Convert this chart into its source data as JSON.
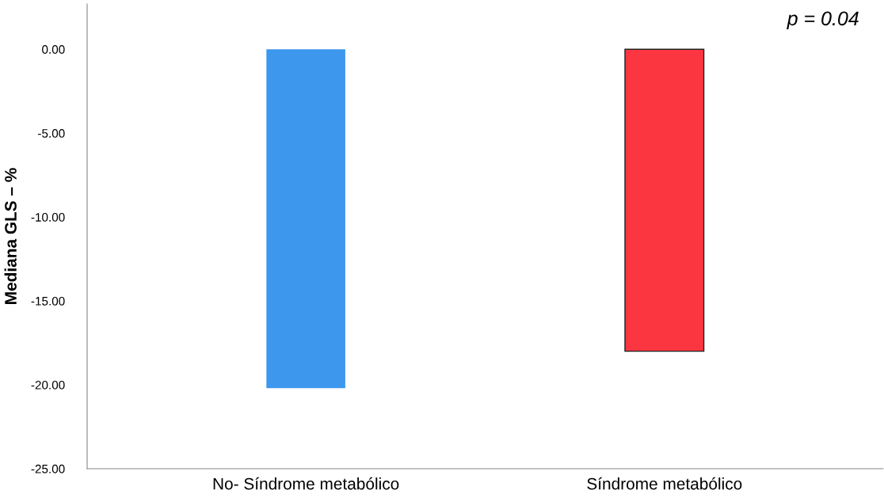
{
  "chart_data": {
    "type": "bar",
    "ylabel": "Mediana GLS – %",
    "categories": [
      "No- Síndrome metabólico",
      "Síndrome metabólico"
    ],
    "values": [
      -20.2,
      -18.0
    ],
    "colors": [
      "#3c97ed",
      "#fc3641"
    ],
    "ylim": [
      -25,
      2.7
    ],
    "yticks": [
      {
        "value": 0,
        "label": "0.00"
      },
      {
        "value": -5,
        "label": "-5.00"
      },
      {
        "value": -10,
        "label": "-10.00"
      },
      {
        "value": -15,
        "label": "-15.00"
      },
      {
        "value": -20,
        "label": "-20.00"
      },
      {
        "value": -25,
        "label": "-25.00"
      }
    ],
    "grid": false,
    "legend": false,
    "annotations": [
      "p = 0.04"
    ]
  }
}
